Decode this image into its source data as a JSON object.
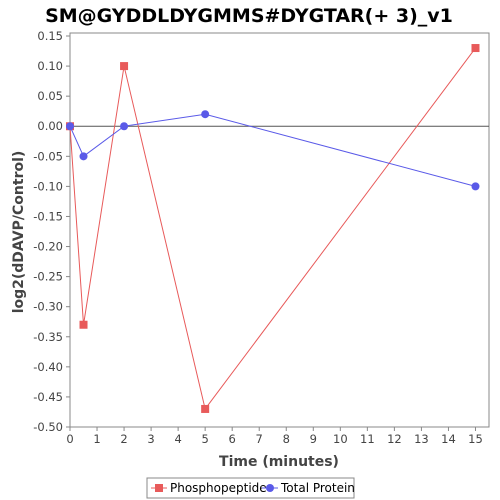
{
  "chart_data": {
    "type": "line",
    "title": "SM@GYDDLDYGMMS#DYGTAR(+ 3)_v1",
    "xlabel": "Time (minutes)",
    "ylabel": "log2(dDAVP/Control)",
    "xlim": [
      0,
      15.5
    ],
    "ylim": [
      -0.5,
      0.155
    ],
    "xticks": [
      0,
      1,
      2,
      3,
      4,
      5,
      6,
      7,
      8,
      9,
      10,
      11,
      12,
      13,
      14,
      15
    ],
    "xtick_labels": [
      "0",
      "1",
      "2",
      "3",
      "4",
      "5",
      "6",
      "7",
      "8",
      "9",
      "10",
      "11",
      "12",
      "13",
      "14",
      "15"
    ],
    "yticks": [
      0.15,
      0.1,
      0.05,
      0.0,
      -0.05,
      -0.1,
      -0.15,
      -0.2,
      -0.25,
      -0.3,
      -0.35,
      -0.4,
      -0.45,
      -0.5
    ],
    "ytick_labels": [
      "0.15",
      "0.10",
      "0.05",
      "0.00",
      "-0.05",
      "-0.10",
      "-0.15",
      "-0.20",
      "-0.25",
      "-0.30",
      "-0.35",
      "-0.40",
      "-0.45",
      "-0.50"
    ],
    "zero_line": true,
    "grid": false,
    "legend_position": "bottom-center",
    "series": [
      {
        "name": "Phosphopeptide",
        "color": "#e85a5a",
        "marker": "square",
        "x": [
          0,
          0.5,
          2,
          5,
          15
        ],
        "y": [
          0.0,
          -0.33,
          0.1,
          -0.47,
          0.13
        ]
      },
      {
        "name": "Total Protein",
        "color": "#5a5ae8",
        "marker": "circle",
        "x": [
          0,
          0.5,
          2,
          5,
          15
        ],
        "y": [
          0.0,
          -0.05,
          0.0,
          0.02,
          -0.1
        ]
      }
    ]
  }
}
